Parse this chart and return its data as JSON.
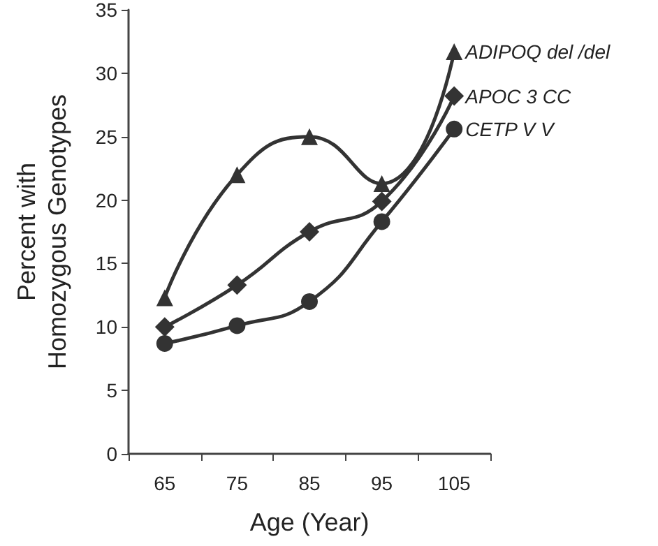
{
  "chart_data": {
    "type": "line",
    "xlabel": "Age (Year)",
    "ylabel": "Percent with\nHomozygous Genotypes",
    "categories": [
      "65",
      "75",
      "85",
      "95",
      "105"
    ],
    "series": [
      {
        "name": "ADIPOQ del /del",
        "color": "#333333",
        "marker": "triangle",
        "values": [
          12.3,
          22,
          25,
          21.3,
          31.7
        ]
      },
      {
        "name": "APOC 3 CC",
        "color": "#333333",
        "marker": "diamond",
        "values": [
          10,
          13.3,
          17.5,
          19.9,
          28.2
        ]
      },
      {
        "name": "CETP V V",
        "color": "#333333",
        "marker": "circle",
        "values": [
          8.7,
          10.1,
          12,
          18.3,
          25.6
        ]
      }
    ],
    "ylim": [
      0,
      35
    ],
    "yticks": [
      0,
      5,
      10,
      15,
      20,
      25,
      30,
      35
    ],
    "grid": false,
    "legend": false,
    "line_style": "solid"
  }
}
